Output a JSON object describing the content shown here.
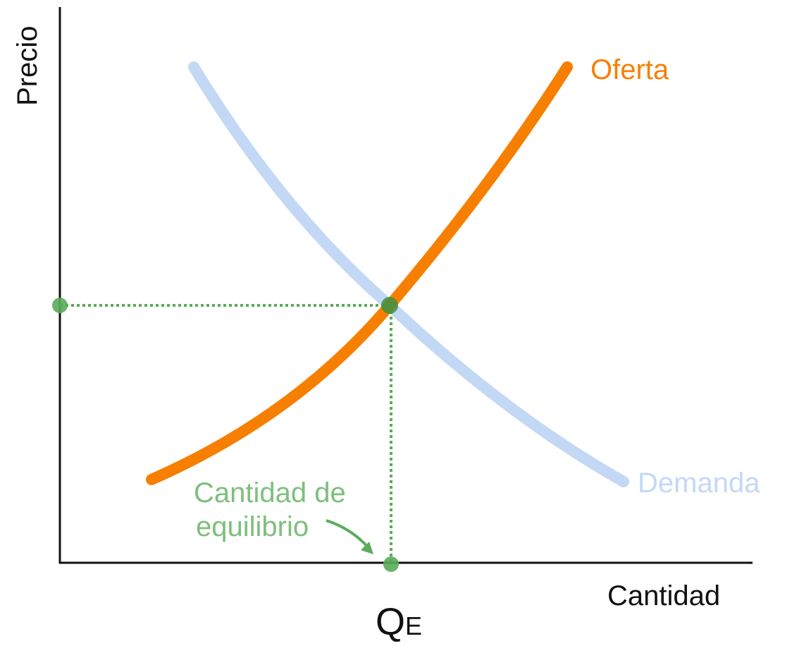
{
  "axes": {
    "y_label": "Precio",
    "x_label": "Cantidad"
  },
  "curves": {
    "supply": "Oferta",
    "demand": "Demanda"
  },
  "annotation": {
    "lines": [
      "Cantidad de",
      "equilibrio"
    ]
  },
  "equilibrium_quantity": {
    "symbol": "Q",
    "subscript": "E"
  }
}
